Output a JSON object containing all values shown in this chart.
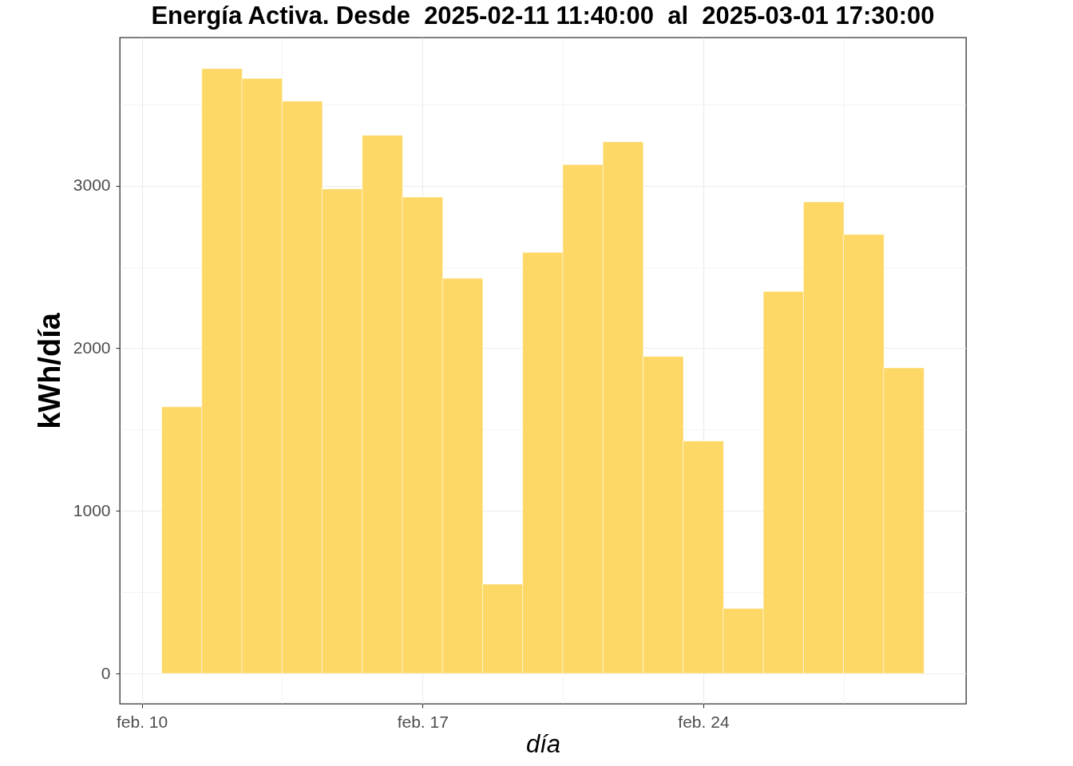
{
  "chart_data": {
    "type": "bar",
    "title": "Energía Activa. Desde  2025-02-11 11:40:00  al  2025-03-01 17:30:00",
    "xlabel": "día",
    "ylabel": "kWh/día",
    "x": [
      "2025-02-11",
      "2025-02-12",
      "2025-02-13",
      "2025-02-14",
      "2025-02-15",
      "2025-02-16",
      "2025-02-17",
      "2025-02-18",
      "2025-02-19",
      "2025-02-20",
      "2025-02-21",
      "2025-02-22",
      "2025-02-23",
      "2025-02-24",
      "2025-02-25",
      "2025-02-26",
      "2025-02-27",
      "2025-02-28",
      "2025-03-01"
    ],
    "values": [
      1640,
      3720,
      3660,
      3520,
      2980,
      3310,
      2930,
      2430,
      550,
      2590,
      3130,
      3270,
      1950,
      1430,
      400,
      2350,
      2900,
      2700,
      1880
    ],
    "color": "#fdd866",
    "xlim": [
      "2025-02-09T13:12",
      "2025-03-02T10:48"
    ],
    "xticks": [
      {
        "value": "2025-02-10",
        "label": "feb. 10"
      },
      {
        "value": "2025-02-17",
        "label": "feb. 17"
      },
      {
        "value": "2025-02-24",
        "label": "feb. 24"
      }
    ],
    "ylim": [
      -186,
      3911
    ],
    "yticks": [
      0,
      1000,
      2000,
      3000
    ],
    "grid": true
  }
}
